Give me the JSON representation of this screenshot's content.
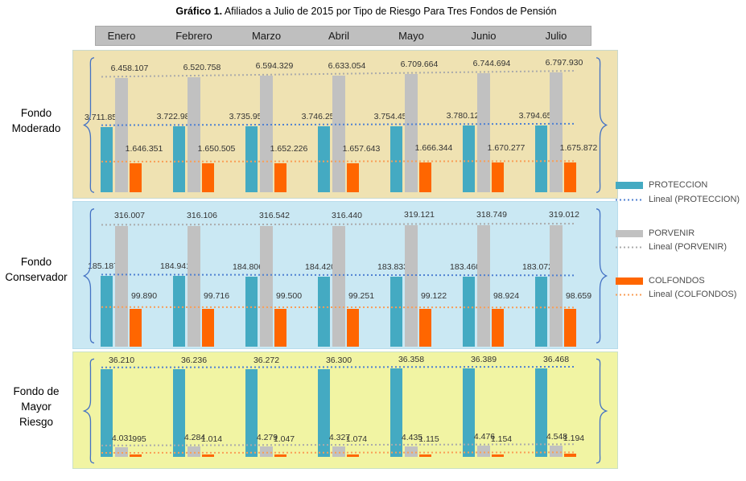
{
  "title": {
    "bold": "Gráfico 1.",
    "rest": " Afiliados a Julio de 2015 por Tipo de Riesgo Para Tres Fondos de Pensión"
  },
  "colors": {
    "proteccion": "#44AAC2",
    "porvenir": "#C1C1C1",
    "colfondos": "#FF6600",
    "lineal_proteccion": "#4F81D2",
    "lineal_porvenir": "#ABABAB",
    "lineal_colfondos": "#F99E56",
    "brace": "#4472C4",
    "month_band": "#BFBFBF",
    "panel_moderado": "#EFE2B2",
    "panel_conservador": "#CAE8F3",
    "panel_mayor_riesgo": "#F1F4A3"
  },
  "legend": [
    {
      "series": "PROTECCION",
      "lineal": "Lineal (PROTECCION)",
      "color": "#44AAC2",
      "line_color": "#4F81D2"
    },
    {
      "series": "PORVENIR",
      "lineal": "Lineal (PORVENIR)",
      "color": "#C1C1C1",
      "line_color": "#ABABAB"
    },
    {
      "series": "COLFONDOS",
      "lineal": "Lineal (COLFONDOS)",
      "color": "#FF6600",
      "line_color": "#F99E56"
    }
  ],
  "chart_data": {
    "type": "bar",
    "categories": [
      "Enero",
      "Febrero",
      "Marzo",
      "Abril",
      "Mayo",
      "Junio",
      "Julio"
    ],
    "title": "Gráfico 1. Afiliados a Julio de 2015 por Tipo de Riesgo Para Tres Fondos de Pensión",
    "legend_position": "right",
    "value_label_format": "thousands-dot",
    "trendlines": [
      "Lineal (PROTECCION)",
      "Lineal (PORVENIR)",
      "Lineal (COLFONDOS)"
    ],
    "panels": [
      {
        "name": "Fondo Moderado",
        "label_lines": [
          "Fondo",
          "Moderado"
        ],
        "bg": "#EFE2B2",
        "series": [
          {
            "name": "PROTECCION",
            "color": "#44AAC2",
            "line_color": "#4F81D2",
            "values": [
              3711857,
              3722983,
              3735957,
              3746258,
              3754457,
              3780123,
              3794651
            ]
          },
          {
            "name": "PORVENIR",
            "color": "#C1C1C1",
            "line_color": "#ABABAB",
            "values": [
              6458107,
              6520758,
              6594329,
              6633054,
              6709664,
              6744694,
              6797930
            ]
          },
          {
            "name": "COLFONDOS",
            "color": "#FF6600",
            "line_color": "#F99E56",
            "values": [
              1646351,
              1650505,
              1652226,
              1657643,
              1666344,
              1670277,
              1675872
            ]
          }
        ]
      },
      {
        "name": "Fondo Conservador",
        "label_lines": [
          "Fondo",
          "Conservador"
        ],
        "bg": "#CAE8F3",
        "series": [
          {
            "name": "PROTECCION",
            "color": "#44AAC2",
            "line_color": "#4F81D2",
            "values": [
              185187,
              184941,
              184806,
              184420,
              183833,
              183460,
              183072
            ]
          },
          {
            "name": "PORVENIR",
            "color": "#C1C1C1",
            "line_color": "#ABABAB",
            "values": [
              316007,
              316106,
              316542,
              316440,
              319121,
              318749,
              319012
            ]
          },
          {
            "name": "COLFONDOS",
            "color": "#FF6600",
            "line_color": "#F99E56",
            "values": [
              99890,
              99716,
              99500,
              99251,
              99122,
              98924,
              98659
            ]
          }
        ]
      },
      {
        "name": "Fondo de Mayor Riesgo",
        "label_lines": [
          "Fondo de",
          "Mayor",
          "Riesgo"
        ],
        "bg": "#F1F4A3",
        "series": [
          {
            "name": "PROTECCION",
            "color": "#44AAC2",
            "line_color": "#4F81D2",
            "values": [
              36210,
              36236,
              36272,
              36300,
              36358,
              36389,
              36468
            ]
          },
          {
            "name": "PORVENIR",
            "color": "#C1C1C1",
            "line_color": "#ABABAB",
            "values": [
              4031,
              4284,
              4279,
              4327,
              4435,
              4476,
              4548
            ]
          },
          {
            "name": "COLFONDOS",
            "color": "#FF6600",
            "line_color": "#F99E56",
            "values": [
              995,
              1014,
              1047,
              1074,
              1115,
              1154,
              1194
            ]
          }
        ]
      }
    ]
  }
}
